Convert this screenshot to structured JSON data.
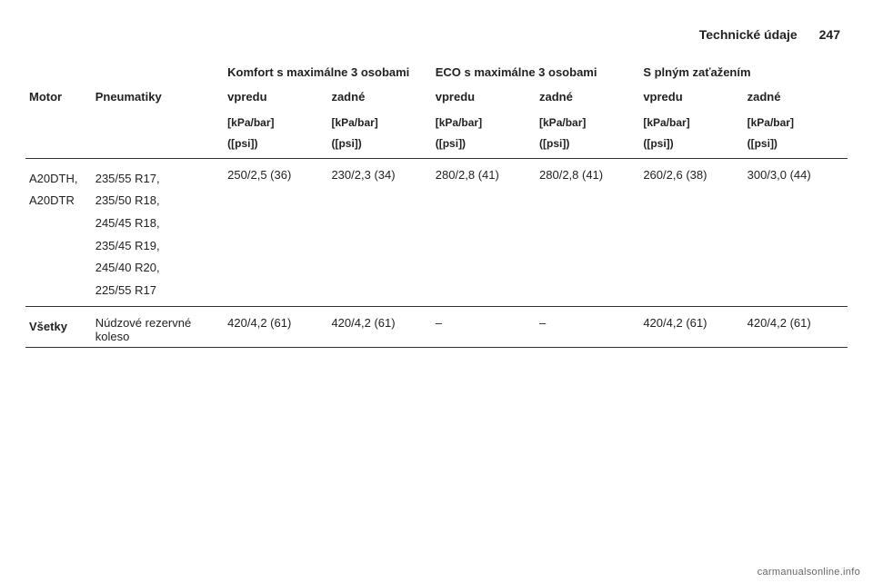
{
  "header": {
    "section_title": "Technické údaje",
    "page_number": "247"
  },
  "table": {
    "group_headers": {
      "comfort": "Komfort s maximálne 3 osobami",
      "eco": "ECO s maximálne 3 osobami",
      "full": "S plným zaťažením"
    },
    "col_labels": {
      "motor": "Motor",
      "tires": "Pneumatiky",
      "front": "vpredu",
      "rear": "zadné"
    },
    "unit_lines": {
      "line1": "[kPa/bar]",
      "line2": "([psi])"
    },
    "rows": [
      {
        "motors": [
          "A20DTH,",
          "A20DTR"
        ],
        "tires": [
          "235/55 R17,",
          "235/50 R18,",
          "245/45 R18,",
          "235/45 R19,",
          "245/40 R20,",
          "225/55 R17"
        ],
        "comfort_front": "250/2,5 (36)",
        "comfort_rear": "230/2,3 (34)",
        "eco_front": "280/2,8 (41)",
        "eco_rear": "280/2,8 (41)",
        "full_front": "260/2,6 (38)",
        "full_rear": "300/3,0 (44)"
      },
      {
        "motors": [
          "Všetky"
        ],
        "tires": [
          "Núdzové rezervné koleso"
        ],
        "comfort_front": "420/4,2 (61)",
        "comfort_rear": "420/4,2 (61)",
        "eco_front": "–",
        "eco_rear": "–",
        "full_front": "420/4,2 (61)",
        "full_rear": "420/4,2 (61)"
      }
    ]
  },
  "footer": {
    "site": "carmanualsonline.info"
  },
  "style": {
    "text_color": "#222",
    "border_color": "#333",
    "background": "#ffffff",
    "base_fontsize": 13,
    "header_fontsize": 14,
    "unit_fontsize": 12,
    "footer_fontsize": 11,
    "footer_color": "#666"
  }
}
